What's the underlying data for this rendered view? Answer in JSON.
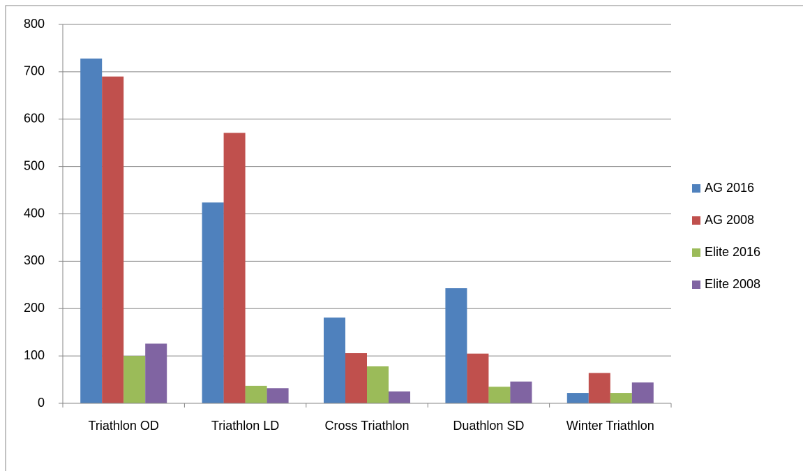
{
  "chart_data": {
    "type": "bar",
    "categories": [
      "Triathlon OD",
      "Triathlon LD",
      "Cross Triathlon",
      "Duathlon SD",
      "Winter Triathlon"
    ],
    "series": [
      {
        "name": "AG 2016",
        "color": "#4f81bd",
        "values": [
          728,
          424,
          181,
          243,
          22
        ]
      },
      {
        "name": "AG 2008",
        "color": "#c0504d",
        "values": [
          690,
          571,
          106,
          105,
          64
        ]
      },
      {
        "name": "Elite 2016",
        "color": "#9bbb59",
        "values": [
          100,
          37,
          78,
          35,
          22
        ]
      },
      {
        "name": "Elite 2008",
        "color": "#8064a2",
        "values": [
          126,
          32,
          25,
          46,
          44
        ]
      }
    ],
    "ylim": [
      0,
      800
    ],
    "yticks": [
      0,
      100,
      200,
      300,
      400,
      500,
      600,
      700,
      800
    ],
    "grid": true,
    "legend": "right"
  }
}
